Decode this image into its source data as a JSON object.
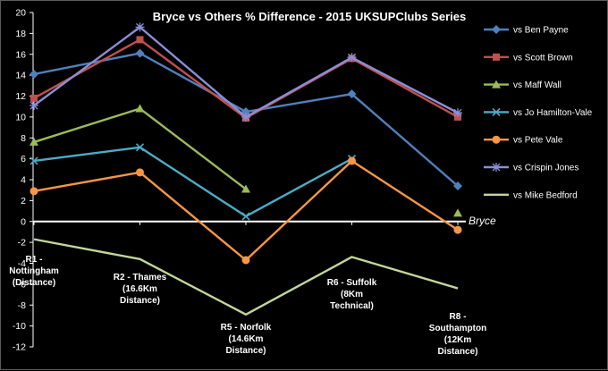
{
  "chart_data": {
    "type": "line",
    "title": "Bryce vs Others % Difference - 2015 UKSUPClubs Series",
    "xlabel": "",
    "ylabel": "",
    "ylim": [
      -12,
      20
    ],
    "ytick_step": 2,
    "grid": false,
    "legend_position": "right",
    "baseline_label": "Bryce",
    "categories": [
      [
        "R1 -",
        "Nottingham",
        "(Distance)"
      ],
      [
        "R2 - Thames",
        "(16.6Km",
        "Distance)"
      ],
      [
        "R5 - Norfolk",
        "(14.6Km",
        "Distance)"
      ],
      [
        "R6 - Suffolk",
        "(8Km",
        "Technical)"
      ],
      [
        "R8 -",
        "Southampton",
        "(12Km",
        "Distance)"
      ]
    ],
    "series": [
      {
        "name": "vs Ben Payne",
        "color": "#4F81BD",
        "marker": "diamond",
        "values": [
          14.1,
          16.1,
          10.5,
          12.2,
          3.4
        ]
      },
      {
        "name": "vs Scott Brown",
        "color": "#C0504D",
        "marker": "square",
        "values": [
          11.8,
          17.4,
          9.9,
          15.6,
          10.0
        ]
      },
      {
        "name": "vs Maff Wall",
        "color": "#9BBB59",
        "marker": "triangle",
        "values": [
          7.6,
          10.8,
          3.1,
          null,
          0.8
        ]
      },
      {
        "name": "vs Jo Hamilton-Vale",
        "color": "#4BACC6",
        "marker": "x",
        "values": [
          5.8,
          7.1,
          0.5,
          6.0,
          null
        ]
      },
      {
        "name": "vs Pete Vale",
        "color": "#F79646",
        "marker": "circle",
        "values": [
          2.9,
          4.7,
          -3.7,
          5.8,
          -0.8
        ]
      },
      {
        "name": "vs Crispin Jones",
        "color": "#8B8FD8",
        "marker": "plus",
        "values": [
          11.1,
          18.6,
          10.0,
          15.7,
          10.4
        ]
      },
      {
        "name": "vs Mike Bedford",
        "color": "#C3D69B",
        "marker": "none",
        "values": [
          -1.7,
          -3.6,
          -8.9,
          -3.4,
          -6.4
        ]
      }
    ]
  }
}
